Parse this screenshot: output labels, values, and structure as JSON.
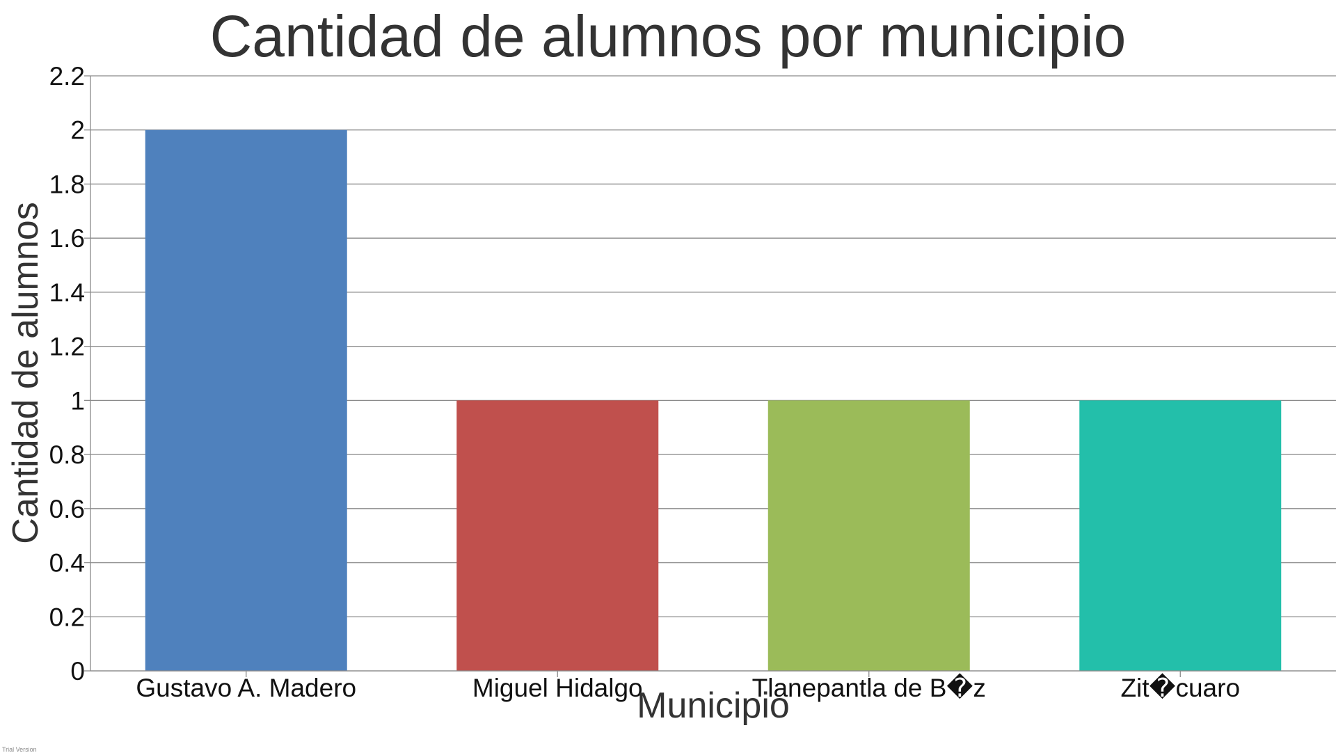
{
  "chart_data": {
    "type": "bar",
    "title": "Cantidad de alumnos por municipio",
    "xlabel": "Municipio",
    "ylabel": "Cantidad de alumnos",
    "categories": [
      "Gustavo A. Madero",
      "Miguel Hidalgo",
      "Tlanepantla de B�z",
      "Zit�cuaro"
    ],
    "values": [
      2,
      1,
      1,
      1
    ],
    "colors": [
      "#4f81bd",
      "#c0504d",
      "#9bbb59",
      "#23bfaa"
    ],
    "ylim": [
      0,
      2.2
    ],
    "yticks": [
      "0",
      "0.2",
      "0.4",
      "0.6",
      "0.8",
      "1",
      "1.2",
      "1.4",
      "1.6",
      "1.8",
      "2",
      "2.2"
    ],
    "grid": true,
    "legend": "none"
  },
  "watermark": "Trial Version"
}
